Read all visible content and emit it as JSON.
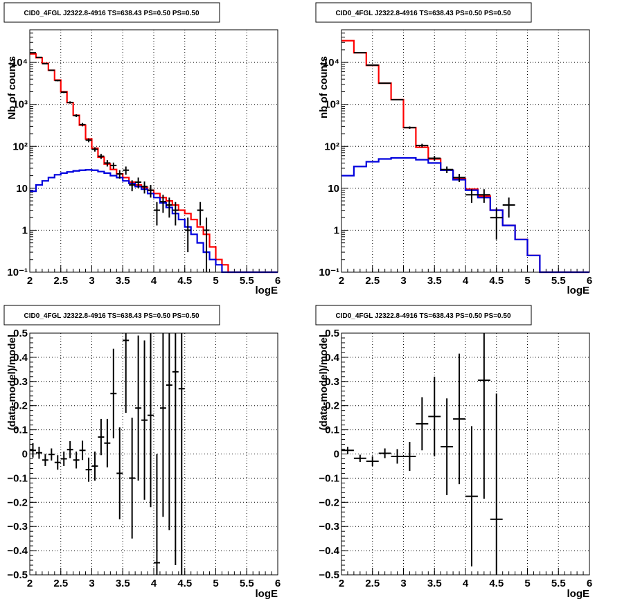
{
  "colors": {
    "data": "#000000",
    "total": "#ff0000",
    "background": "#0000dd",
    "grid": "#000000"
  },
  "chart_data": [
    {
      "type": "line",
      "title": "CID0_4FGL J2322.8-4916 TS=638.43 PS=0.50 PS=0.50",
      "xlabel": "logE",
      "ylabel": "Nb of counts",
      "xlim": [
        2,
        6
      ],
      "ylim": [
        0.1,
        60000
      ],
      "yscale": "log",
      "grid": true,
      "x_ticks": [
        "2",
        "2.5",
        "3",
        "3.5",
        "4",
        "4.5",
        "5",
        "5.5",
        "6"
      ],
      "y_ticks": [
        "10⁻¹",
        "1",
        "10",
        "10²",
        "10³",
        "10⁴"
      ],
      "bin_edges": [
        2.0,
        2.1,
        2.2,
        2.3,
        2.4,
        2.5,
        2.6,
        2.7,
        2.8,
        2.9,
        3.0,
        3.1,
        3.2,
        3.3,
        3.4,
        3.5,
        3.6,
        3.7,
        3.8,
        3.9,
        4.0,
        4.1,
        4.2,
        4.3,
        4.4,
        4.5,
        4.6,
        4.7,
        4.8,
        4.9,
        5.0,
        5.1,
        5.2,
        5.3,
        5.4,
        5.5,
        5.6,
        5.7,
        5.8,
        5.9,
        6.0
      ],
      "series": [
        {
          "name": "",
          "role": "total",
          "values": [
            16000,
            13000,
            9500,
            6500,
            3800,
            2000,
            1100,
            550,
            320,
            150,
            90,
            55,
            38,
            28,
            22,
            18,
            14,
            12,
            10.5,
            9,
            7.5,
            6,
            5,
            4,
            3,
            2.5,
            1.8,
            1.2,
            0.8,
            0.4,
            0.2,
            0.15,
            0.1,
            0.1,
            0.1,
            0.1,
            0.1,
            0.1,
            0.1,
            0.1
          ]
        },
        {
          "name": "",
          "role": "background",
          "values": [
            8.5,
            12,
            15,
            18,
            21,
            23,
            24.5,
            26,
            27,
            27.5,
            27,
            25,
            23,
            20,
            18,
            15,
            13,
            11,
            9.5,
            7.5,
            6,
            4.5,
            3.5,
            2.5,
            1.8,
            1.2,
            0.8,
            0.5,
            0.3,
            0.2,
            0.15,
            0.1,
            0.1,
            0.1,
            0.1,
            0.1,
            0.1,
            0.1,
            0.1,
            0.1
          ]
        },
        {
          "name": "",
          "role": "data",
          "points": [
            {
              "x": 2.05,
              "y": 17000,
              "ylo": 16700,
              "yhi": 17300
            },
            {
              "x": 2.15,
              "y": 13200,
              "ylo": 12900,
              "yhi": 13500
            },
            {
              "x": 2.25,
              "y": 9300,
              "ylo": 9100,
              "yhi": 9500
            },
            {
              "x": 2.35,
              "y": 6500,
              "ylo": 6300,
              "yhi": 6700
            },
            {
              "x": 2.45,
              "y": 3700,
              "ylo": 3550,
              "yhi": 3850
            },
            {
              "x": 2.55,
              "y": 1950,
              "ylo": 1860,
              "yhi": 2040
            },
            {
              "x": 2.65,
              "y": 1110,
              "ylo": 1040,
              "yhi": 1180
            },
            {
              "x": 2.75,
              "y": 540,
              "ylo": 500,
              "yhi": 580
            },
            {
              "x": 2.85,
              "y": 330,
              "ylo": 300,
              "yhi": 360
            },
            {
              "x": 2.95,
              "y": 140,
              "ylo": 125,
              "yhi": 155
            },
            {
              "x": 3.05,
              "y": 85,
              "ylo": 75,
              "yhi": 95
            },
            {
              "x": 3.15,
              "y": 58,
              "ylo": 50,
              "yhi": 66
            },
            {
              "x": 3.25,
              "y": 40,
              "ylo": 33,
              "yhi": 47
            },
            {
              "x": 3.35,
              "y": 35,
              "ylo": 29,
              "yhi": 41
            },
            {
              "x": 3.45,
              "y": 22,
              "ylo": 17,
              "yhi": 27
            },
            {
              "x": 3.55,
              "y": 27,
              "ylo": 21,
              "yhi": 33
            },
            {
              "x": 3.65,
              "y": 12,
              "ylo": 8.5,
              "yhi": 15.5
            },
            {
              "x": 3.75,
              "y": 14,
              "ylo": 10,
              "yhi": 18
            },
            {
              "x": 3.85,
              "y": 11,
              "ylo": 7.5,
              "yhi": 14.5
            },
            {
              "x": 3.95,
              "y": 9,
              "ylo": 6,
              "yhi": 12
            },
            {
              "x": 4.05,
              "y": 3,
              "ylo": 1.3,
              "yhi": 4.7
            },
            {
              "x": 4.15,
              "y": 4.8,
              "ylo": 2.6,
              "yhi": 7
            },
            {
              "x": 4.25,
              "y": 4,
              "ylo": 2,
              "yhi": 6
            },
            {
              "x": 4.35,
              "y": 3,
              "ylo": 1.3,
              "yhi": 4.7
            },
            {
              "x": 4.55,
              "y": 1,
              "ylo": 0.3,
              "yhi": 2
            },
            {
              "x": 4.75,
              "y": 3,
              "ylo": 1.3,
              "yhi": 4.7
            },
            {
              "x": 4.85,
              "y": 1,
              "ylo": 0.1,
              "yhi": 2
            }
          ]
        }
      ]
    },
    {
      "type": "line",
      "title": "CID0_4FGL J2322.8-4916 TS=638.43 PS=0.50 PS=0.50",
      "xlabel": "logE",
      "ylabel": "nb of counts",
      "xlim": [
        2,
        6
      ],
      "ylim": [
        0.1,
        60000
      ],
      "yscale": "log",
      "grid": true,
      "x_ticks": [
        "2",
        "2.5",
        "3",
        "3.5",
        "4",
        "4.5",
        "5",
        "5.5",
        "6"
      ],
      "y_ticks": [
        "10⁻¹",
        "1",
        "10",
        "10²",
        "10³",
        "10⁴"
      ],
      "bin_edges": [
        2.0,
        2.2,
        2.4,
        2.6,
        2.8,
        3.0,
        3.2,
        3.4,
        3.6,
        3.8,
        4.0,
        4.2,
        4.4,
        4.6,
        4.8,
        5.0,
        5.2,
        5.4,
        5.6,
        5.8,
        6.0
      ],
      "series": [
        {
          "name": "",
          "role": "total",
          "values": [
            33000,
            17000,
            8500,
            3200,
            1300,
            280,
            95,
            50,
            27,
            17,
            9.5,
            6.5,
            3,
            1.3,
            0.6,
            0.25,
            0.1,
            0.1,
            0.1,
            0.1
          ]
        },
        {
          "name": "",
          "role": "background",
          "values": [
            20,
            33,
            43,
            50,
            53,
            53,
            48,
            40,
            27,
            16,
            9,
            6,
            3,
            1.3,
            0.6,
            0.25,
            0.1,
            0.1,
            0.1,
            0.1
          ]
        },
        {
          "name": "",
          "role": "data",
          "points": [
            {
              "x": 2.3,
              "y": 17000,
              "ylo": 16700,
              "yhi": 17300
            },
            {
              "x": 2.5,
              "y": 8600,
              "ylo": 8400,
              "yhi": 8800
            },
            {
              "x": 2.7,
              "y": 3200,
              "ylo": 3100,
              "yhi": 3300
            },
            {
              "x": 2.9,
              "y": 1290,
              "ylo": 1250,
              "yhi": 1330
            },
            {
              "x": 3.1,
              "y": 280,
              "ylo": 262,
              "yhi": 298
            },
            {
              "x": 3.3,
              "y": 105,
              "ylo": 95,
              "yhi": 115
            },
            {
              "x": 3.5,
              "y": 52,
              "ylo": 45,
              "yhi": 59
            },
            {
              "x": 3.7,
              "y": 28,
              "ylo": 23,
              "yhi": 33
            },
            {
              "x": 3.9,
              "y": 18,
              "ylo": 14,
              "yhi": 22
            },
            {
              "x": 4.1,
              "y": 7,
              "ylo": 4.5,
              "yhi": 9.5
            },
            {
              "x": 4.3,
              "y": 7,
              "ylo": 4.5,
              "yhi": 9.5
            },
            {
              "x": 4.5,
              "y": 2,
              "ylo": 0.6,
              "yhi": 3.4
            },
            {
              "x": 4.7,
              "y": 4,
              "ylo": 2,
              "yhi": 6
            }
          ]
        }
      ]
    },
    {
      "type": "scatter",
      "title": "CID0_4FGL J2322.8-4916 TS=638.43 PS=0.50 PS=0.50",
      "xlabel": "logE",
      "ylabel": "(data-model)/model",
      "xlim": [
        2,
        6
      ],
      "ylim": [
        -0.5,
        0.5
      ],
      "grid": true,
      "x_ticks": [
        "2",
        "2.5",
        "3",
        "3.5",
        "4",
        "4.5",
        "5",
        "5.5",
        "6"
      ],
      "y_ticks": [
        "−0.5",
        "−0.4",
        "−0.3",
        "−0.2",
        "−0.1",
        "0",
        "0.1",
        "0.2",
        "0.3",
        "0.4",
        "0.5"
      ],
      "x_halfwidth": 0.05,
      "points": [
        {
          "x": 2.05,
          "y": 0.015,
          "err": 0.03
        },
        {
          "x": 2.15,
          "y": 0.005,
          "err": 0.025
        },
        {
          "x": 2.25,
          "y": -0.025,
          "err": 0.025
        },
        {
          "x": 2.35,
          "y": -0.002,
          "err": 0.025
        },
        {
          "x": 2.45,
          "y": -0.035,
          "err": 0.03
        },
        {
          "x": 2.55,
          "y": -0.02,
          "err": 0.03
        },
        {
          "x": 2.65,
          "y": 0.018,
          "err": 0.035
        },
        {
          "x": 2.75,
          "y": -0.025,
          "err": 0.035
        },
        {
          "x": 2.85,
          "y": 0.015,
          "err": 0.04
        },
        {
          "x": 2.95,
          "y": -0.065,
          "err": 0.05
        },
        {
          "x": 3.05,
          "y": -0.05,
          "err": 0.06
        },
        {
          "x": 3.15,
          "y": 0.07,
          "err": 0.075
        },
        {
          "x": 3.25,
          "y": 0.045,
          "err": 0.1
        },
        {
          "x": 3.35,
          "y": 0.25,
          "err": 0.185
        },
        {
          "x": 3.45,
          "y": -0.08,
          "err": 0.19
        },
        {
          "x": 3.55,
          "y": 0.47,
          "err": 0.3
        },
        {
          "x": 3.65,
          "y": -0.1,
          "err": 0.25
        },
        {
          "x": 3.75,
          "y": 0.19,
          "err": 0.3
        },
        {
          "x": 3.85,
          "y": 0.14,
          "err": 0.33
        },
        {
          "x": 3.95,
          "y": 0.16,
          "err": 0.38
        },
        {
          "x": 4.05,
          "y": -0.45,
          "err": 0.45
        },
        {
          "x": 4.15,
          "y": 0.19,
          "err": 0.45
        },
        {
          "x": 4.25,
          "y": 0.285,
          "err": 0.6
        },
        {
          "x": 4.35,
          "y": 0.34,
          "err": 0.8
        },
        {
          "x": 4.45,
          "y": 0.27,
          "err": 0.9
        }
      ]
    },
    {
      "type": "scatter",
      "title": "CID0_4FGL J2322.8-4916 TS=638.43 PS=0.50 PS=0.50",
      "xlabel": "logE",
      "ylabel": "(data-model)/model",
      "xlim": [
        2,
        6
      ],
      "ylim": [
        -0.5,
        0.5
      ],
      "grid": true,
      "x_ticks": [
        "2",
        "2.5",
        "3",
        "3.5",
        "4",
        "4.5",
        "5",
        "5.5",
        "6"
      ],
      "y_ticks": [
        "−0.5",
        "−0.4",
        "−0.3",
        "−0.2",
        "−0.1",
        "0",
        "0.1",
        "0.2",
        "0.3",
        "0.4",
        "0.5"
      ],
      "x_halfwidth": 0.1,
      "points": [
        {
          "x": 2.1,
          "y": 0.015,
          "err": 0.015
        },
        {
          "x": 2.3,
          "y": -0.018,
          "err": 0.015
        },
        {
          "x": 2.5,
          "y": -0.03,
          "err": 0.02
        },
        {
          "x": 2.7,
          "y": 0.003,
          "err": 0.02
        },
        {
          "x": 2.9,
          "y": -0.01,
          "err": 0.03
        },
        {
          "x": 3.1,
          "y": -0.01,
          "err": 0.06
        },
        {
          "x": 3.3,
          "y": 0.125,
          "err": 0.11
        },
        {
          "x": 3.5,
          "y": 0.155,
          "err": 0.165
        },
        {
          "x": 3.7,
          "y": 0.03,
          "err": 0.2
        },
        {
          "x": 3.9,
          "y": 0.145,
          "err": 0.27
        },
        {
          "x": 4.1,
          "y": -0.175,
          "err": 0.29
        },
        {
          "x": 4.3,
          "y": 0.305,
          "err": 0.49
        },
        {
          "x": 4.5,
          "y": -0.27,
          "err": 0.52
        }
      ]
    }
  ]
}
